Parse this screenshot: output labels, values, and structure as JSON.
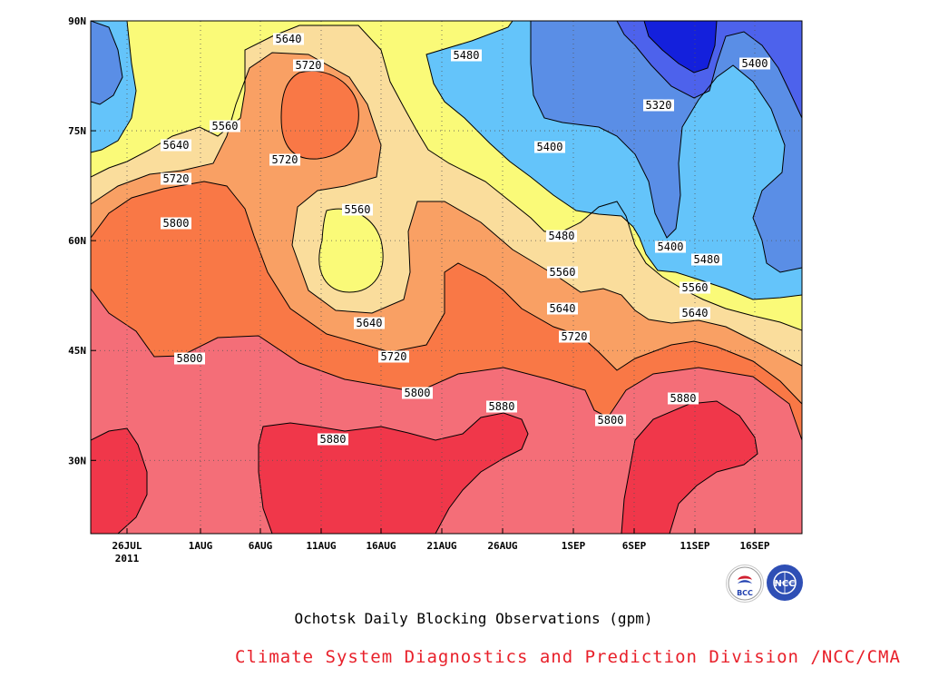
{
  "chart_data": {
    "type": "contour",
    "title": "Ochotsk Daily Blocking Observations (gpm)",
    "x_ticks": [
      "26JUL",
      "1AUG",
      "6AUG",
      "11AUG",
      "16AUG",
      "21AUG",
      "26AUG",
      "1SEP",
      "6SEP",
      "11SEP",
      "16SEP"
    ],
    "x_sub": "2011",
    "y_ticks": [
      "90N",
      "75N",
      "60N",
      "45N",
      "30N"
    ],
    "y_values": [
      90,
      75,
      60,
      45,
      30
    ],
    "y_range": [
      20,
      90
    ],
    "contour_levels": [
      5320,
      5400,
      5480,
      5560,
      5640,
      5720,
      5800,
      5880
    ],
    "fill_colors": {
      "below_5320": "#1420dc",
      "5320_5400": "#4d62ec",
      "5400_5480": "#5a8ee6",
      "5480_5560": "#64c4fa",
      "5560_5640": "#fafa78",
      "5640_5720": "#fadd9c",
      "5720_5800": "#f9a064",
      "5800_5880": "#f97846",
      "5880_5960": "#f46e78",
      "above_5960": "#f0374a"
    },
    "contour_labels": [
      {
        "v": "5640"
      },
      {
        "v": "5720"
      },
      {
        "v": "5480"
      },
      {
        "v": "5560"
      },
      {
        "v": "5640"
      },
      {
        "v": "5720"
      },
      {
        "v": "5400"
      },
      {
        "v": "5320"
      },
      {
        "v": "5400"
      },
      {
        "v": "5720"
      },
      {
        "v": "5800"
      },
      {
        "v": "5560"
      },
      {
        "v": "5480"
      },
      {
        "v": "5400"
      },
      {
        "v": "5480"
      },
      {
        "v": "5560"
      },
      {
        "v": "5560"
      },
      {
        "v": "5640"
      },
      {
        "v": "5640"
      },
      {
        "v": "5640"
      },
      {
        "v": "5720"
      },
      {
        "v": "5800"
      },
      {
        "v": "5720"
      },
      {
        "v": "5800"
      },
      {
        "v": "5880"
      },
      {
        "v": "5800"
      },
      {
        "v": "5880"
      },
      {
        "v": "5880"
      }
    ],
    "grid": true
  },
  "footer": "Climate System Diagnostics and Prediction Division /NCC/CMA",
  "logos": {
    "left": "BCC",
    "right": "NCC"
  }
}
